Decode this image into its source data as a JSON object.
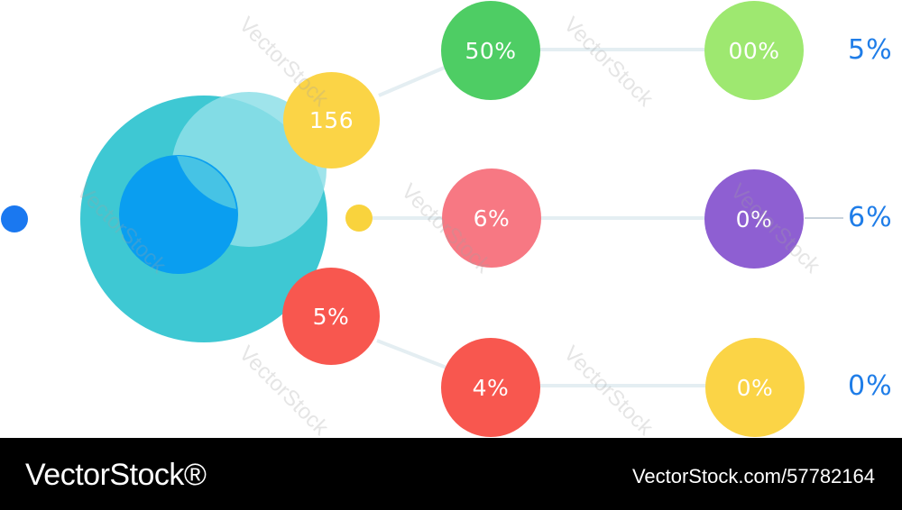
{
  "colors": {
    "big_circle": "#3ec8d3",
    "big_circle_light": "#85dde6",
    "big_circle_inner": "#0fa2ea",
    "connector": "#e4eef2",
    "dot_left": "#1a78f0",
    "dot_small": "#f9d33d",
    "label_blue": "#1f7de8",
    "yellow": "#fbd446",
    "red": "#f8574f",
    "green": "#4ecd64",
    "pink": "#f77883",
    "light_green": "#9ee870",
    "purple": "#8e5fd2"
  },
  "nodes": {
    "yellow_top": {
      "label": "156",
      "color": "yellow"
    },
    "red_mid": {
      "label": "5%",
      "color": "red"
    },
    "green_top": {
      "label": "50%",
      "color": "green"
    },
    "pink_mid": {
      "label": "6%",
      "color": "pink"
    },
    "red_bottom": {
      "label": "4%",
      "color": "red"
    },
    "lightgreen_right": {
      "label": "00%",
      "color": "light_green"
    },
    "purple_right": {
      "label": "0%",
      "color": "purple"
    },
    "yellow_right": {
      "label": "0%",
      "color": "yellow"
    }
  },
  "side_labels": {
    "top": "5%",
    "middle": "6%",
    "bottom": "0%"
  },
  "watermark_text": "VectorStock",
  "footer": {
    "brand": "VectorStock®",
    "image_id": "VectorStock.com/57782164"
  }
}
